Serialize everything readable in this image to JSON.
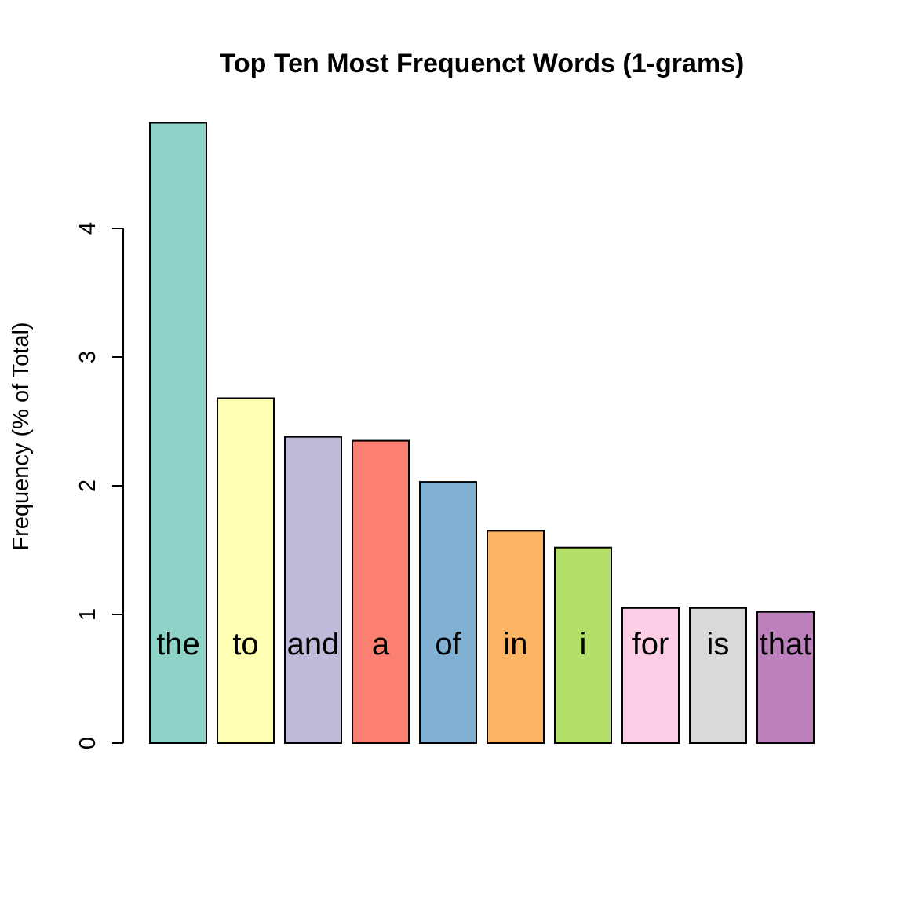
{
  "chart_data": {
    "type": "bar",
    "title": "Top Ten Most Frequenct Words (1-grams)",
    "xlabel": "",
    "ylabel": "Frequency (% of Total)",
    "categories": [
      "the",
      "to",
      "and",
      "a",
      "of",
      "in",
      "i",
      "for",
      "is",
      "that"
    ],
    "values": [
      4.82,
      2.68,
      2.38,
      2.35,
      2.03,
      1.65,
      1.52,
      1.05,
      1.05,
      1.02
    ],
    "colors": [
      "#8DD3C7",
      "#FFFFB3",
      "#BEBADA",
      "#FB8072",
      "#80B1D3",
      "#FDB462",
      "#B3DE69",
      "#FCCDE5",
      "#D9D9D9",
      "#BC80BD"
    ],
    "yticks": [
      0,
      1,
      2,
      3,
      4
    ],
    "ylim": [
      0,
      4.82
    ],
    "label_y_value": 0.78,
    "grid": false,
    "legend": "none"
  }
}
